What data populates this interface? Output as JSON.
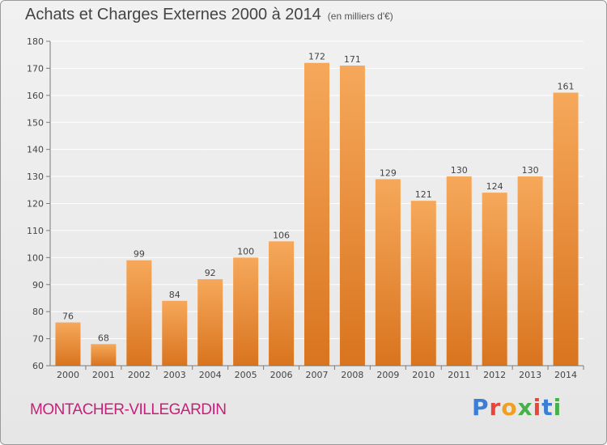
{
  "header": {
    "title": "Achats et Charges Externes 2000 à 2014",
    "subtitle": "(en milliers d'€)"
  },
  "footer": {
    "place": "MONTACHER-VILLEGARDIN"
  },
  "logo": {
    "text": "Proxiti",
    "colors": [
      "#3a7fd5",
      "#e8463a",
      "#f0a020",
      "#48b048",
      "#e8463a",
      "#3a7fd5",
      "#48b048"
    ]
  },
  "colors": {
    "bar_top": "#f6a85a",
    "bar_bottom": "#d9741f",
    "grid": "#ffffff",
    "axis": "#7a7a7a"
  },
  "chart_data": {
    "type": "bar",
    "categories": [
      "2000",
      "2001",
      "2002",
      "2003",
      "2004",
      "2005",
      "2006",
      "2007",
      "2008",
      "2009",
      "2010",
      "2011",
      "2012",
      "2013",
      "2014"
    ],
    "values": [
      76,
      68,
      99,
      84,
      92,
      100,
      106,
      172,
      171,
      129,
      121,
      130,
      124,
      130,
      161
    ],
    "ylim": [
      60,
      180
    ],
    "yticks": [
      60,
      70,
      80,
      90,
      100,
      110,
      120,
      130,
      140,
      150,
      160,
      170,
      180
    ],
    "grid": true
  }
}
